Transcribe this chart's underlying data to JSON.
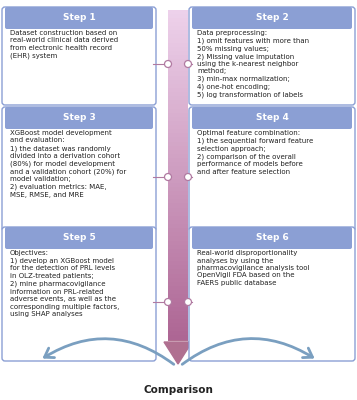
{
  "title": "Comparison",
  "steps": [
    {
      "label": "Step 1",
      "text": "Dataset construction based on\nreal-world clinical data derived\nfrom electronic health record\n(EHR) system",
      "side": "left",
      "row": 0
    },
    {
      "label": "Step 2",
      "text": "Data preprocessing:\n1) omit features with more than\n50% missing values;\n2) Missing value imputation\nusing the k-nearest neighbor\nmethod;\n3) min-max normalization;\n4) one-hot encoding;\n5) log transformation of labels",
      "side": "right",
      "row": 0
    },
    {
      "label": "Step 3",
      "text": "XGBoost model development\nand evaluation:\n1) the dataset was randomly\ndivided into a derivation cohort\n(80%) for model development\nand a validation cohort (20%) for\nmodel validation;\n2) evaluation metrics: MAE,\nMSE, RMSE, and MRE",
      "side": "left",
      "row": 1
    },
    {
      "label": "Step 4",
      "text": "Optimal feature combination:\n1) the sequential forward feature\nselection approach;\n2) comparison of the overall\nperformance of models before\nand after feature selection",
      "side": "right",
      "row": 1
    },
    {
      "label": "Step 5",
      "text": "Objectives:\n1) develop an XGBoost model\nfor the detection of PRL levels\nin OLZ-treated patients;\n2) mine pharmacovigilance\ninformation on PRL-related\nadverse events, as well as the\ncorresponding multiple factors,\nusing SHAP analyses",
      "side": "left",
      "row": 2
    },
    {
      "label": "Step 6",
      "text": "Real-world disproportionality\nanalyses by using the\npharmacovigilance analysis tool\nOpenVigil FDA based on the\nFAERS public database",
      "side": "right",
      "row": 2
    }
  ],
  "header_color": "#8b9fd4",
  "header_text_color": "white",
  "box_edge_color": "#8b9fd4",
  "box_face_color": "white",
  "text_color": "#222222",
  "connector_color": "#b07aa1",
  "comparison_arrow_color": "#7a9fc0",
  "bar_color_top": "#e8d5e8",
  "bar_color_bottom": "#b07090"
}
